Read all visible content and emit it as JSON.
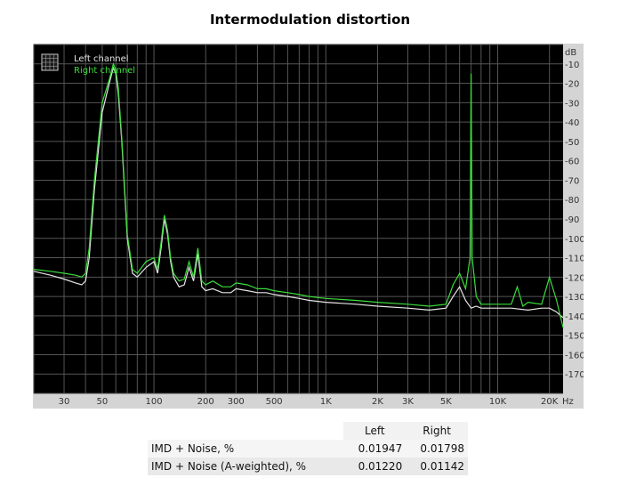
{
  "title": "Intermodulation distortion",
  "chart_data": {
    "type": "line",
    "x_scale": "log",
    "xlim": [
      20,
      24000
    ],
    "ylim": [
      -180,
      0
    ],
    "y_unit": "dB",
    "x_unit": "Hz",
    "x_ticks": [
      {
        "v": 30,
        "label": "30"
      },
      {
        "v": 50,
        "label": "50"
      },
      {
        "v": 100,
        "label": "100"
      },
      {
        "v": 200,
        "label": "200"
      },
      {
        "v": 300,
        "label": "300"
      },
      {
        "v": 500,
        "label": "500"
      },
      {
        "v": 1000,
        "label": "1K"
      },
      {
        "v": 2000,
        "label": "2K"
      },
      {
        "v": 3000,
        "label": "3K"
      },
      {
        "v": 5000,
        "label": "5K"
      },
      {
        "v": 10000,
        "label": "10K"
      },
      {
        "v": 20000,
        "label": "20K"
      }
    ],
    "y_ticks": [
      -10,
      -20,
      -30,
      -40,
      -50,
      -60,
      -70,
      -80,
      -90,
      -100,
      -110,
      -120,
      -130,
      -140,
      -150,
      -160,
      -170
    ],
    "grid": true,
    "legend_position": "top-left",
    "series": [
      {
        "name": "Left channel",
        "color": "#e6e6e6",
        "x": [
          20,
          25,
          30,
          35,
          38,
          40,
          42,
          45,
          50,
          55,
          58,
          60,
          62,
          65,
          70,
          75,
          80,
          90,
          100,
          105,
          110,
          115,
          120,
          125,
          130,
          140,
          150,
          160,
          170,
          180,
          190,
          200,
          220,
          250,
          280,
          300,
          350,
          400,
          450,
          500,
          600,
          700,
          800,
          1000,
          1500,
          2000,
          3000,
          4000,
          5000,
          5500,
          6000,
          6500,
          7000,
          7500,
          8000,
          9000,
          10000,
          12000,
          15000,
          18000,
          20000,
          22000,
          24000
        ],
        "y": [
          -117,
          -119,
          -121,
          -123,
          -124,
          -122,
          -110,
          -75,
          -35,
          -20,
          -12,
          -15,
          -25,
          -50,
          -100,
          -118,
          -120,
          -115,
          -112,
          -118,
          -105,
          -90,
          -98,
          -112,
          -120,
          -125,
          -124,
          -115,
          -122,
          -108,
          -125,
          -127,
          -126,
          -128,
          -128,
          -126,
          -127,
          -128,
          -128,
          -129,
          -130,
          -131,
          -132,
          -133,
          -134,
          -135,
          -136,
          -137,
          -136,
          -130,
          -125,
          -132,
          -136,
          -135,
          -136,
          -136,
          -136,
          -136,
          -137,
          -136,
          -136,
          -138,
          -141
        ]
      },
      {
        "name": "Right channel",
        "color": "#3cdc3c",
        "x": [
          20,
          25,
          30,
          35,
          38,
          40,
          42,
          45,
          50,
          55,
          58,
          60,
          62,
          65,
          70,
          75,
          80,
          90,
          100,
          105,
          110,
          115,
          120,
          125,
          130,
          140,
          150,
          160,
          170,
          180,
          190,
          200,
          220,
          250,
          280,
          300,
          350,
          400,
          450,
          500,
          600,
          700,
          800,
          1000,
          1500,
          2000,
          3000,
          4000,
          5000,
          5500,
          6000,
          6500,
          6900,
          7000,
          7100,
          7500,
          8000,
          9000,
          10000,
          12000,
          13000,
          14000,
          15000,
          18000,
          20000,
          22000,
          24000
        ],
        "y": [
          -116,
          -117,
          -118,
          -119,
          -120,
          -118,
          -105,
          -70,
          -30,
          -18,
          -10,
          -13,
          -22,
          -48,
          -98,
          -116,
          -118,
          -112,
          -110,
          -116,
          -102,
          -88,
          -96,
          -110,
          -118,
          -122,
          -121,
          -112,
          -120,
          -105,
          -122,
          -124,
          -122,
          -125,
          -125,
          -123,
          -124,
          -126,
          -126,
          -127,
          -128,
          -129,
          -130,
          -131,
          -132,
          -133,
          -134,
          -135,
          -134,
          -124,
          -118,
          -126,
          -110,
          -15,
          -110,
          -130,
          -134,
          -134,
          -134,
          -134,
          -125,
          -135,
          -133,
          -134,
          -120,
          -132,
          -146
        ]
      }
    ]
  },
  "legend": {
    "left": "Left channel",
    "right": "Right channel"
  },
  "table": {
    "headers": [
      "",
      "Left",
      "Right"
    ],
    "rows": [
      {
        "label": "IMD + Noise, %",
        "left": "0.01947",
        "right": "0.01798"
      },
      {
        "label": "IMD + Noise (A-weighted), %",
        "left": "0.01220",
        "right": "0.01142"
      }
    ]
  }
}
